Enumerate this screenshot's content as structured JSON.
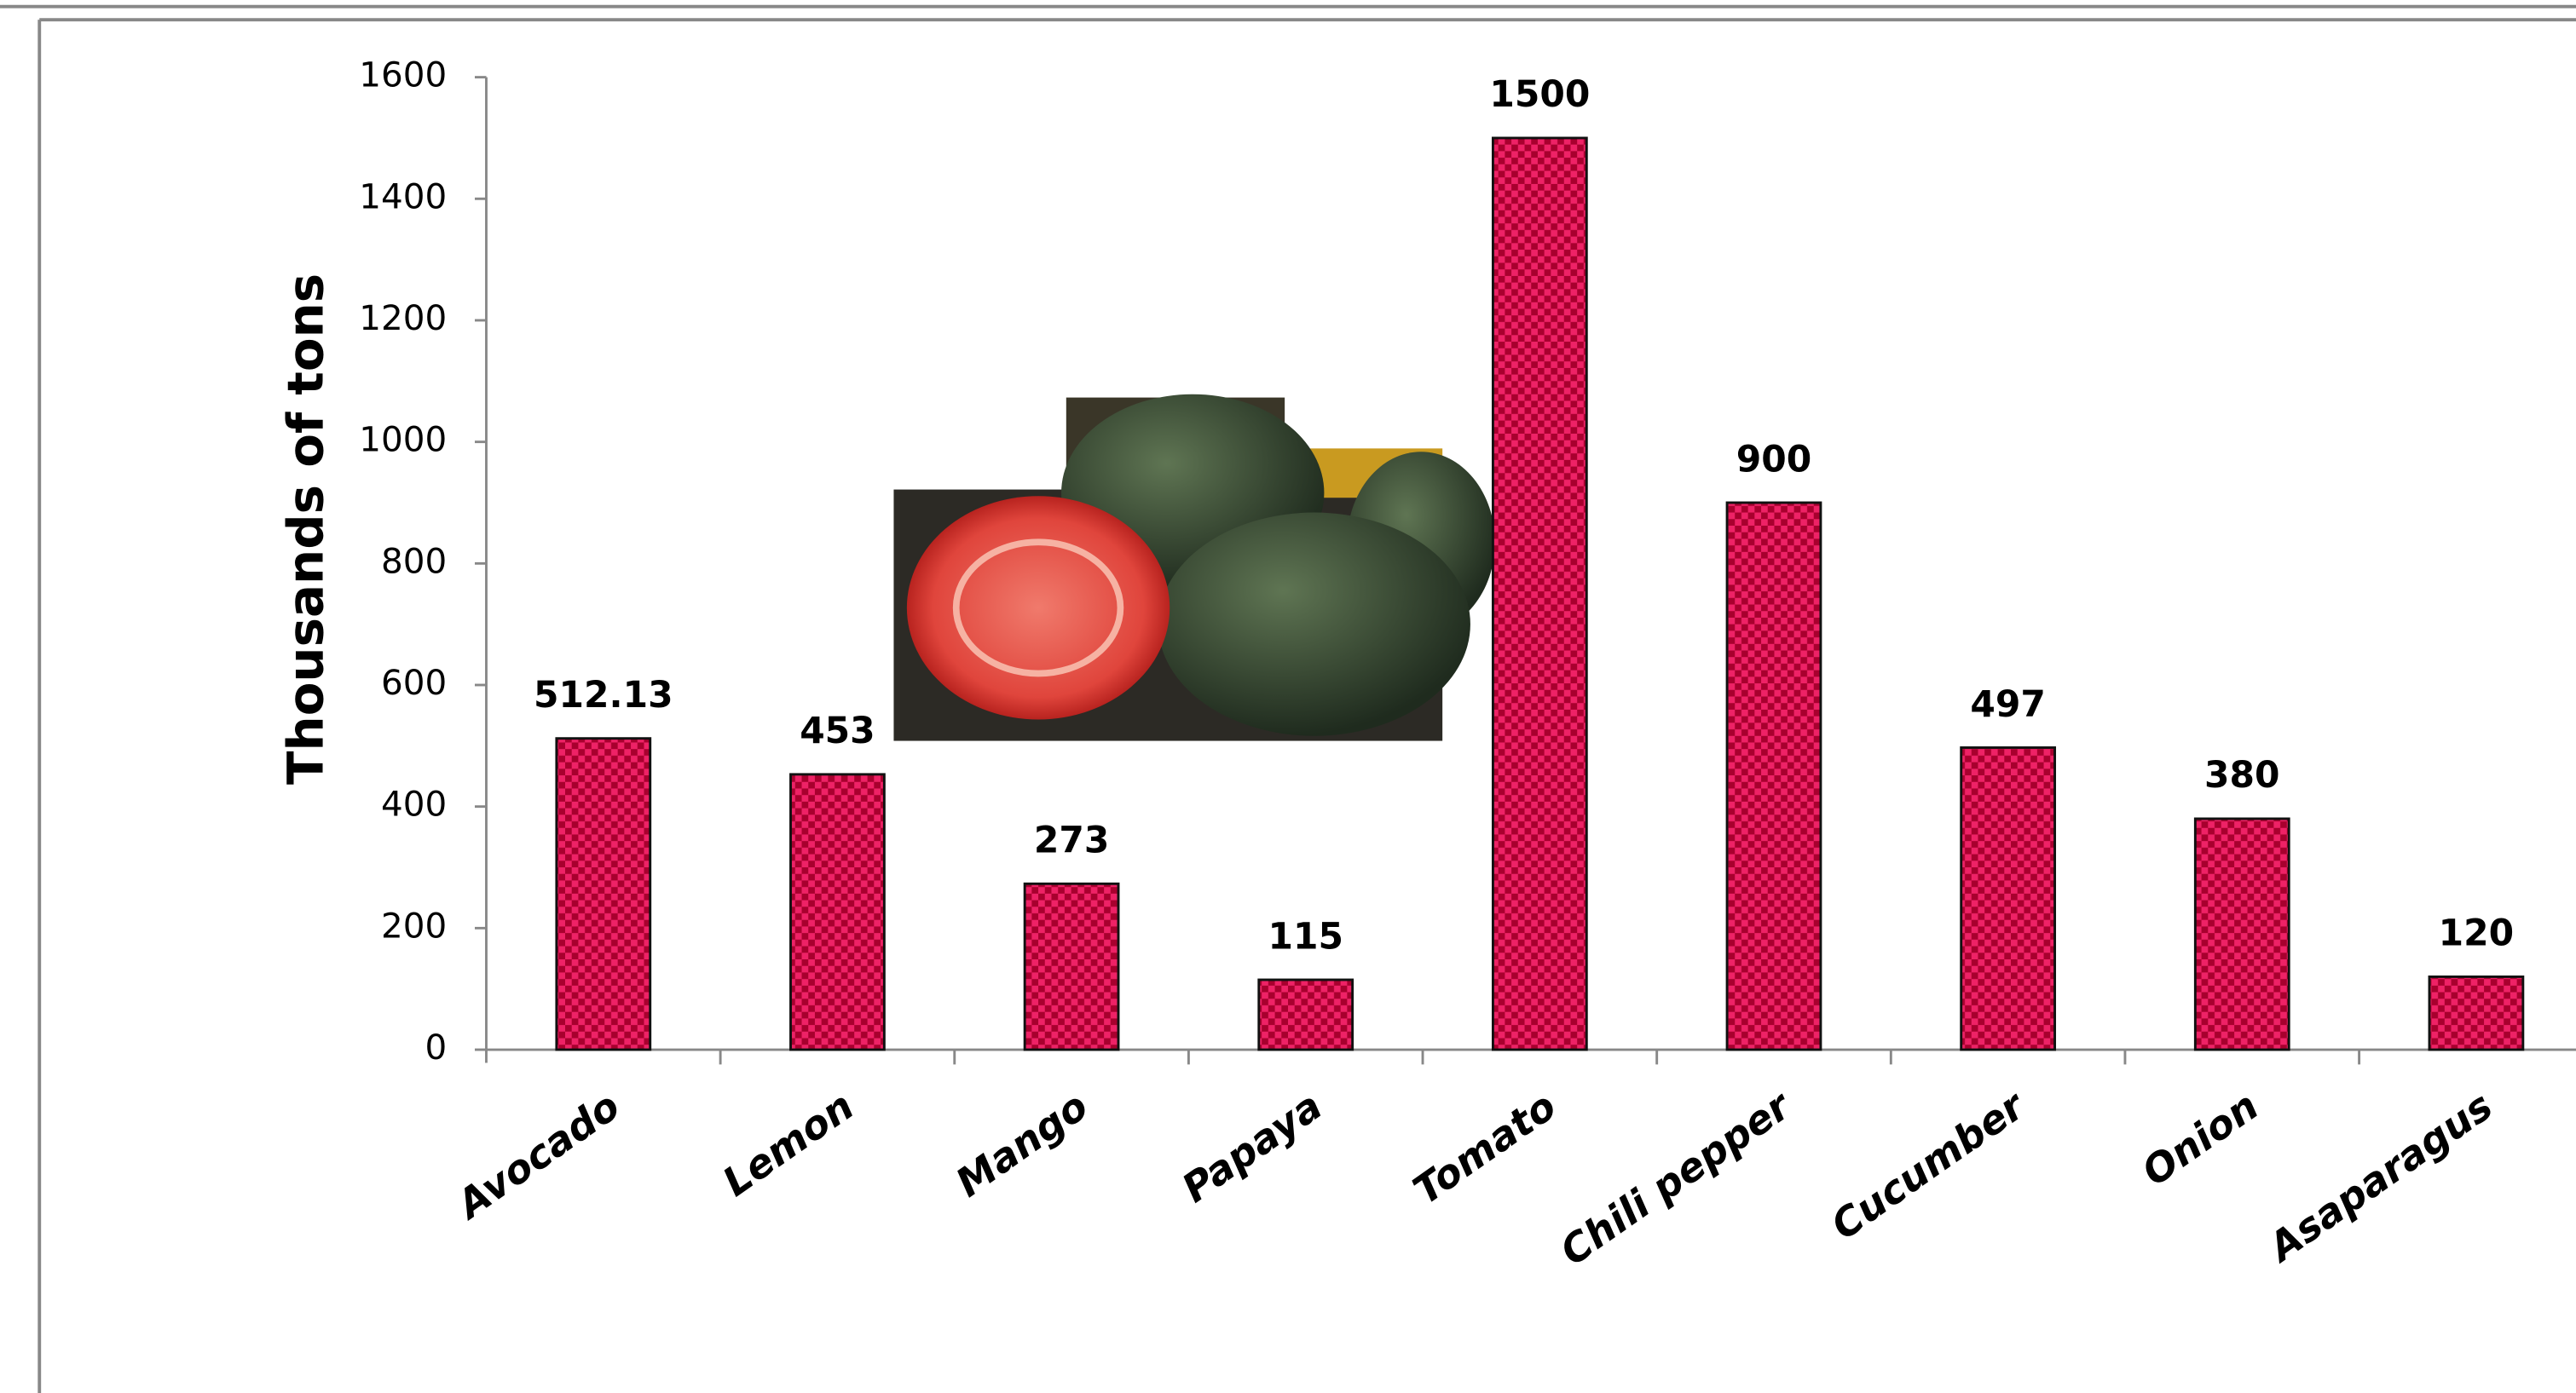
{
  "chart_data": {
    "type": "bar",
    "y_label": "Thousands of tons",
    "categories": [
      "Avocado",
      "Lemon",
      "Mango",
      "Papaya",
      "Tomato",
      "Chili pepper",
      "Cucumber",
      "Onion",
      "Asaparagus"
    ],
    "values": [
      512.13,
      453,
      273,
      115,
      1500,
      900,
      497,
      380,
      120
    ],
    "color": "#e8185a",
    "ylim": [
      0,
      1600
    ],
    "yticks": [
      0,
      200,
      400,
      600,
      800,
      1000,
      1200,
      1400,
      1600
    ]
  }
}
